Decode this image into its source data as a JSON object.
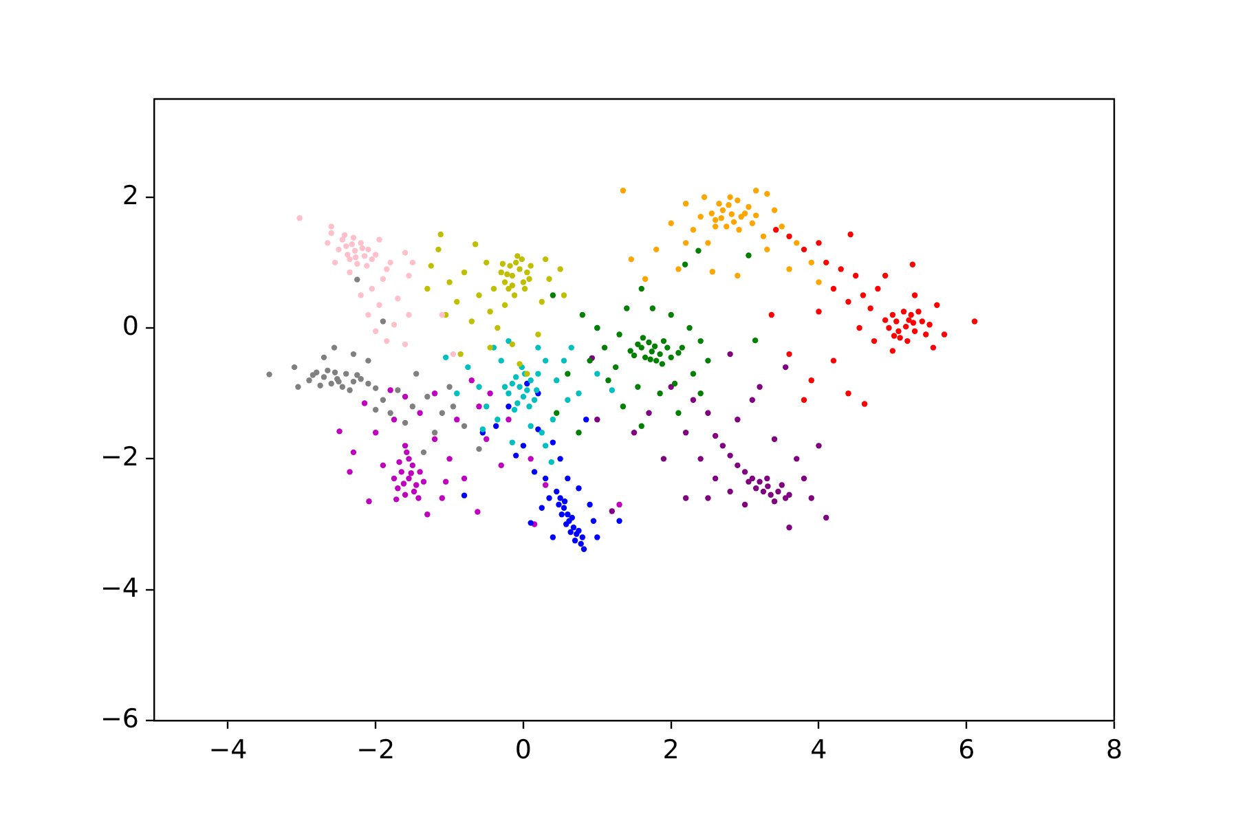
{
  "chart_data": {
    "type": "scatter",
    "xlim": [
      -5,
      8
    ],
    "ylim": [
      -6,
      3.5
    ],
    "xticks": [
      {
        "value": -4,
        "label": "−4"
      },
      {
        "value": -2,
        "label": "−2"
      },
      0,
      2,
      4,
      6,
      8
    ],
    "yticks": [
      {
        "value": -6,
        "label": "−6"
      },
      {
        "value": -4,
        "label": "−4"
      },
      {
        "value": -2,
        "label": "−2"
      },
      0,
      2
    ],
    "grid": false,
    "legend": false,
    "marker": "circle",
    "series": [
      {
        "color": "#ffc0cb",
        "x": [
          -2.28,
          -2.4,
          -2.15,
          -2.35,
          -2.2,
          -2.45,
          -2.1,
          -2.3,
          -2.05,
          -2.5,
          -2.25,
          -2.38,
          -2.18,
          -2.32,
          -2.12,
          -2.42,
          -2.0,
          -2.27,
          -3.03,
          -2.6,
          -2.55,
          -1.95,
          -1.8,
          -1.6,
          -1.55,
          -1.9,
          -2.05,
          -2.2,
          -1.95,
          -2.1,
          -1.75,
          -1.85,
          -2.0,
          -1.5,
          -2.65,
          -1.7,
          -1.1,
          -0.95,
          -1.6,
          -1.85,
          -2.6,
          -2.35,
          -1.55
        ],
        "values": [
          1.18,
          1.25,
          1.1,
          1.05,
          1.3,
          1.35,
          1.2,
          1.38,
          1.05,
          1.2,
          0.98,
          1.12,
          1.22,
          1.28,
          0.95,
          1.42,
          1.12,
          1.08,
          1.68,
          1.45,
          1.0,
          1.35,
          1.0,
          1.15,
          0.8,
          0.75,
          0.6,
          0.5,
          0.35,
          0.2,
          0.05,
          -0.2,
          -0.05,
          1.0,
          1.3,
          0.45,
          0.2,
          -0.4,
          -0.25,
          0.9,
          1.55,
          0.85,
          0.2
        ]
      },
      {
        "color": "#808080",
        "x": [
          -2.52,
          -2.7,
          -2.85,
          -2.6,
          -2.4,
          -2.3,
          -2.45,
          -2.75,
          -2.2,
          -2.1,
          -2.55,
          -2.9,
          -2.35,
          -2.65,
          -2.0,
          -2.5,
          -2.8,
          -2.25,
          -3.44,
          -3.1,
          -3.05,
          -2.56,
          -2.3,
          -2.1,
          -2.25,
          -1.9,
          -1.7,
          -1.5,
          -1.3,
          -1.1,
          -0.95,
          -1.6,
          -1.8,
          -2.0,
          -1.2,
          -0.8,
          -1.45,
          -2.7,
          -1.9,
          -1.0,
          -0.6,
          -1.35
        ],
        "values": [
          -0.78,
          -0.75,
          -0.72,
          -0.85,
          -0.7,
          -0.82,
          -0.9,
          -0.88,
          -0.78,
          -0.85,
          -0.68,
          -0.8,
          -0.95,
          -0.65,
          -0.92,
          -0.82,
          -0.68,
          -0.72,
          -0.71,
          -0.6,
          -0.9,
          -0.3,
          -0.4,
          -0.5,
          0.74,
          -1.1,
          -0.95,
          -1.2,
          -1.05,
          -1.3,
          -1.2,
          -1.45,
          -1.3,
          -1.25,
          -1.6,
          -1.5,
          -0.7,
          -0.45,
          0.1,
          -0.9,
          -1.85,
          -1.9
        ]
      },
      {
        "color": "#bfbf00",
        "x": [
          -0.15,
          -0.05,
          -0.25,
          0.05,
          -0.1,
          -0.2,
          0.0,
          -0.3,
          -0.08,
          0.1,
          -0.18,
          0.02,
          -0.12,
          -0.28,
          0.08,
          -0.22,
          -0.02,
          -0.15,
          -0.65,
          -0.5,
          -0.8,
          -1.0,
          -1.25,
          -1.3,
          -0.9,
          -0.6,
          -0.45,
          -0.7,
          -1.05,
          -0.35,
          -0.15,
          -0.25,
          0.25,
          0.35,
          0.5,
          0.3,
          0.55,
          -0.45,
          -0.05,
          -1.15,
          -0.4,
          0.2,
          -0.85,
          0.05,
          -1.12
        ],
        "values": [
          0.8,
          0.9,
          0.7,
          0.85,
          1.0,
          0.6,
          0.7,
          0.85,
          1.1,
          0.95,
          0.95,
          0.6,
          0.5,
          0.98,
          0.75,
          0.82,
          1.05,
          0.65,
          1.28,
          1.0,
          0.85,
          0.7,
          0.95,
          0.6,
          0.4,
          0.5,
          0.25,
          0.1,
          0.2,
          0.0,
          -0.25,
          0.35,
          0.4,
          0.75,
          0.9,
          1.05,
          0.5,
          -0.3,
          -0.55,
          1.2,
          0.6,
          -0.1,
          -0.4,
          -0.7,
          1.43
        ]
      },
      {
        "color": "#008000",
        "x": [
          1.74,
          1.6,
          1.85,
          1.5,
          1.95,
          2.1,
          1.7,
          1.8,
          1.65,
          1.9,
          2.0,
          1.55,
          1.78,
          2.15,
          1.45,
          1.88,
          1.62,
          1.72,
          0.8,
          1.0,
          1.1,
          1.25,
          1.3,
          1.4,
          1.6,
          1.75,
          2.0,
          2.25,
          2.4,
          2.5,
          2.3,
          2.05,
          1.85,
          1.55,
          1.35,
          1.6,
          2.1,
          0.6,
          0.45,
          0.9,
          2.37,
          2.19,
          1.15,
          0.4,
          2.4,
          0.75,
          3.05,
          3.14
        ],
        "values": [
          -0.36,
          -0.3,
          -0.4,
          -0.42,
          -0.3,
          -0.38,
          -0.22,
          -0.5,
          -0.45,
          -0.2,
          -0.45,
          -0.25,
          -0.28,
          -0.3,
          -0.35,
          -0.55,
          -0.15,
          -0.48,
          0.2,
          0.0,
          -0.3,
          -0.6,
          -0.1,
          0.3,
          0.6,
          0.3,
          0.2,
          0.0,
          -0.2,
          -0.5,
          -0.7,
          -0.85,
          -1.0,
          -0.9,
          -1.2,
          -1.5,
          -1.3,
          -0.7,
          -1.3,
          -0.5,
          1.18,
          0.97,
          -0.8,
          0.5,
          -1.0,
          -1.6,
          1.11,
          -0.19
        ]
      },
      {
        "color": "#ffa500",
        "x": [
          2.82,
          2.7,
          2.95,
          2.6,
          3.05,
          2.75,
          2.9,
          2.65,
          3.1,
          2.85,
          2.55,
          3.0,
          2.78,
          2.92,
          2.68,
          3.15,
          2.8,
          2.6,
          1.35,
          1.46,
          2.9,
          2.56,
          2.3,
          2.2,
          2.4,
          2.45,
          3.3,
          3.4,
          3.5,
          3.7,
          3.25,
          2.0,
          1.8,
          2.1,
          3.3,
          3.9,
          1.65,
          2.5,
          3.15,
          2.2,
          4.0,
          3.6
        ],
        "values": [
          1.74,
          1.8,
          1.7,
          1.65,
          1.85,
          1.55,
          1.95,
          1.9,
          1.6,
          1.62,
          1.75,
          1.75,
          1.88,
          1.5,
          1.68,
          1.72,
          2.0,
          1.55,
          2.1,
          1.05,
          0.8,
          0.86,
          1.5,
          1.3,
          1.7,
          2.0,
          2.05,
          1.8,
          1.55,
          1.3,
          1.4,
          1.6,
          1.2,
          0.9,
          1.2,
          1.0,
          0.75,
          1.3,
          2.1,
          1.9,
          0.7,
          0.9
        ]
      },
      {
        "color": "#ff0000",
        "x": [
          5.18,
          5.05,
          5.3,
          4.95,
          5.4,
          5.1,
          5.25,
          5.0,
          5.45,
          5.15,
          5.35,
          4.9,
          5.2,
          5.08,
          5.28,
          5.5,
          5.02,
          5.22,
          6.11,
          3.42,
          3.6,
          3.8,
          4.0,
          4.1,
          4.3,
          4.5,
          4.2,
          4.6,
          4.8,
          4.7,
          4.4,
          5.6,
          5.7,
          5.55,
          4.75,
          4.55,
          3.36,
          3.6,
          3.9,
          4.2,
          4.4,
          3.8,
          4.9,
          5.0,
          5.3,
          4.0,
          4.62,
          4.43,
          5.27
        ],
        "values": [
          0.02,
          0.1,
          -0.05,
          0.0,
          0.1,
          -0.15,
          0.2,
          0.2,
          -0.1,
          0.25,
          0.25,
          0.12,
          -0.2,
          -0.05,
          0.08,
          0.05,
          -0.12,
          0.12,
          0.1,
          1.5,
          1.4,
          1.2,
          1.3,
          1.0,
          0.9,
          0.8,
          0.6,
          0.5,
          0.6,
          0.3,
          0.4,
          0.35,
          -0.1,
          -0.3,
          -0.2,
          0.0,
          0.2,
          -0.4,
          -0.8,
          -0.5,
          -1.0,
          -1.1,
          0.8,
          -0.35,
          0.5,
          0.25,
          -1.16,
          1.43,
          0.97
        ]
      },
      {
        "color": "#800080",
        "x": [
          3.31,
          3.2,
          3.45,
          3.1,
          3.55,
          3.35,
          3.0,
          3.25,
          3.5,
          3.15,
          3.4,
          3.6,
          2.9,
          2.8,
          2.7,
          2.6,
          3.05,
          3.3,
          0.93,
          2.0,
          2.3,
          2.5,
          1.7,
          1.5,
          2.2,
          2.4,
          2.6,
          2.8,
          3.0,
          2.5,
          3.8,
          3.9,
          3.7,
          4.0,
          4.1,
          3.6,
          3.4,
          2.9,
          2.8,
          3.2,
          3.55,
          1.9,
          1.2,
          2.2,
          3.1,
          1.0
        ],
        "values": [
          -2.42,
          -2.35,
          -2.5,
          -2.3,
          -2.6,
          -2.55,
          -2.2,
          -2.5,
          -2.4,
          -2.45,
          -2.65,
          -2.55,
          -2.1,
          -1.95,
          -1.8,
          -1.65,
          -2.35,
          -2.3,
          -0.46,
          -0.9,
          -1.1,
          -1.3,
          -1.3,
          -1.6,
          -1.6,
          -2.0,
          -2.3,
          -2.5,
          -2.7,
          -2.6,
          -2.3,
          -2.6,
          -2.0,
          -1.8,
          -2.9,
          -3.05,
          -1.7,
          -1.4,
          -0.4,
          -0.9,
          -0.6,
          -2.0,
          -2.8,
          -2.6,
          -1.1,
          -1.4
        ]
      },
      {
        "color": "#00bfbf",
        "x": [
          -0.05,
          0.05,
          -0.15,
          0.0,
          -0.1,
          0.1,
          -0.2,
          0.15,
          -0.08,
          0.02,
          -0.25,
          0.18,
          -0.12,
          0.08,
          -0.02,
          0.2,
          -0.75,
          -0.6,
          -0.5,
          -0.4,
          -0.3,
          0.3,
          0.45,
          0.6,
          0.75,
          0.4,
          0.25,
          0.3,
          0.1,
          -0.35,
          -0.55,
          0.2,
          -0.2,
          0.55,
          1.0,
          1.2,
          -0.9,
          0.38,
          -0.15,
          0.65,
          -1.05,
          1.0
        ],
        "values": [
          -0.9,
          -0.95,
          -0.85,
          -1.05,
          -0.75,
          -0.8,
          -1.0,
          -1.1,
          -1.15,
          -0.7,
          -0.9,
          -0.95,
          -1.25,
          -1.2,
          -0.6,
          -0.7,
          -0.6,
          -0.9,
          -1.2,
          -0.3,
          -0.5,
          -0.5,
          -0.8,
          -1.1,
          -1.0,
          -1.4,
          -1.6,
          -1.8,
          -1.5,
          -1.4,
          -1.55,
          -0.3,
          -0.2,
          -0.5,
          -0.7,
          -0.95,
          -1.0,
          -2.05,
          -1.75,
          -0.3,
          -0.45,
          0.0
        ]
      },
      {
        "color": "#0000ff",
        "x": [
          0.62,
          0.5,
          0.45,
          0.55,
          0.6,
          0.68,
          0.72,
          0.78,
          0.82,
          0.58,
          0.66,
          0.52,
          0.7,
          0.75,
          0.48,
          0.64,
          0.56,
          0.8,
          -0.37,
          0.0,
          0.2,
          0.4,
          0.5,
          0.15,
          0.3,
          0.6,
          0.35,
          0.9,
          0.95,
          0.1,
          0.4,
          1.0,
          -0.1,
          -0.2,
          0.05,
          0.2,
          -0.55,
          0.75,
          0.85,
          0.25,
          -0.8,
          1.3
        ],
        "values": [
          -2.95,
          -2.6,
          -2.5,
          -2.75,
          -2.85,
          -3.05,
          -3.15,
          -3.3,
          -3.38,
          -3.0,
          -2.9,
          -2.85,
          -3.25,
          -3.1,
          -2.7,
          -3.12,
          -2.65,
          -3.2,
          -1.5,
          -1.8,
          -1.55,
          -1.75,
          -2.0,
          -2.2,
          -2.3,
          -2.3,
          -2.6,
          -2.7,
          -2.95,
          -2.98,
          -3.2,
          -3.2,
          -1.95,
          -1.2,
          -0.85,
          -1.0,
          -1.6,
          -2.45,
          -1.4,
          -2.75,
          -2.56,
          -2.95
        ]
      },
      {
        "color": "#bf00bf",
        "x": [
          -1.55,
          -1.65,
          -1.45,
          -1.7,
          -1.5,
          -1.6,
          -1.4,
          -1.75,
          -1.55,
          -1.35,
          -1.62,
          -1.48,
          -1.68,
          -1.58,
          -1.42,
          -1.72,
          -1.52,
          -1.6,
          -2.49,
          -2.09,
          -0.62,
          -2.3,
          -2.0,
          -1.9,
          -1.2,
          -1.0,
          -0.8,
          -1.1,
          -0.5,
          -0.3,
          -0.9,
          -1.4,
          -1.8,
          -1.2,
          -0.6,
          -0.45,
          -0.2,
          0.3,
          0.1,
          -1.3,
          -1.75,
          -2.15,
          -0.7,
          -1.6,
          1.3,
          0.15,
          -1.05,
          -2.35
        ],
        "values": [
          -2.3,
          -2.2,
          -2.4,
          -2.45,
          -2.1,
          -2.55,
          -2.2,
          -2.3,
          -2.0,
          -2.35,
          -2.38,
          -2.5,
          -2.05,
          -1.9,
          -2.6,
          -2.62,
          -2.22,
          -1.8,
          -1.58,
          -2.65,
          -2.81,
          -1.9,
          -1.6,
          -2.1,
          -1.7,
          -2.0,
          -2.3,
          -2.6,
          -1.7,
          -2.1,
          -1.4,
          -1.3,
          -0.95,
          -1.0,
          -1.2,
          -1.0,
          -1.4,
          -2.4,
          -2.0,
          -2.85,
          -1.4,
          -1.15,
          -0.8,
          -1.05,
          -2.7,
          -3.0,
          -2.35,
          -2.2
        ]
      }
    ]
  }
}
